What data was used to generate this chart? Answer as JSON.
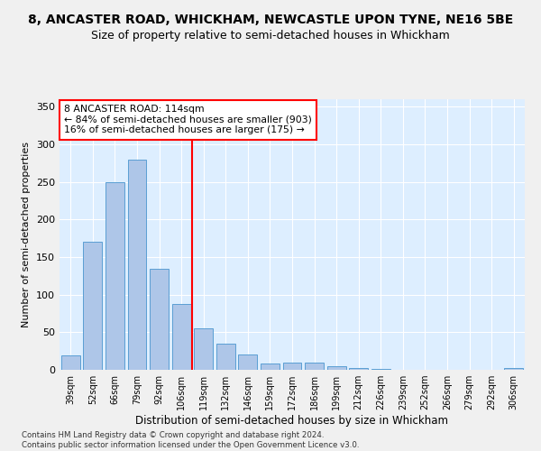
{
  "title1": "8, ANCASTER ROAD, WHICKHAM, NEWCASTLE UPON TYNE, NE16 5BE",
  "title2": "Size of property relative to semi-detached houses in Whickham",
  "xlabel": "Distribution of semi-detached houses by size in Whickham",
  "ylabel": "Number of semi-detached properties",
  "footnote": "Contains HM Land Registry data © Crown copyright and database right 2024.\nContains public sector information licensed under the Open Government Licence v3.0.",
  "categories": [
    "39sqm",
    "52sqm",
    "66sqm",
    "79sqm",
    "92sqm",
    "106sqm",
    "119sqm",
    "132sqm",
    "146sqm",
    "159sqm",
    "172sqm",
    "186sqm",
    "199sqm",
    "212sqm",
    "226sqm",
    "239sqm",
    "252sqm",
    "266sqm",
    "279sqm",
    "292sqm",
    "306sqm"
  ],
  "values": [
    19,
    170,
    250,
    280,
    135,
    88,
    55,
    35,
    21,
    8,
    10,
    10,
    5,
    2,
    1,
    0,
    0,
    0,
    0,
    0,
    2
  ],
  "bar_color": "#aec6e8",
  "bar_edge_color": "#5a9fd4",
  "ref_line_label": "8 ANCASTER ROAD: 114sqm",
  "ref_line_smaller": "← 84% of semi-detached houses are smaller (903)",
  "ref_line_larger": "16% of semi-detached houses are larger (175) →",
  "ref_line_color": "red",
  "annotation_box_color": "red",
  "ylim": [
    0,
    360
  ],
  "yticks": [
    0,
    50,
    100,
    150,
    200,
    250,
    300,
    350
  ],
  "bg_color": "#ddeeff",
  "grid_color": "#ffffff",
  "fig_bg_color": "#f0f0f0",
  "title1_fontsize": 10,
  "title2_fontsize": 9
}
